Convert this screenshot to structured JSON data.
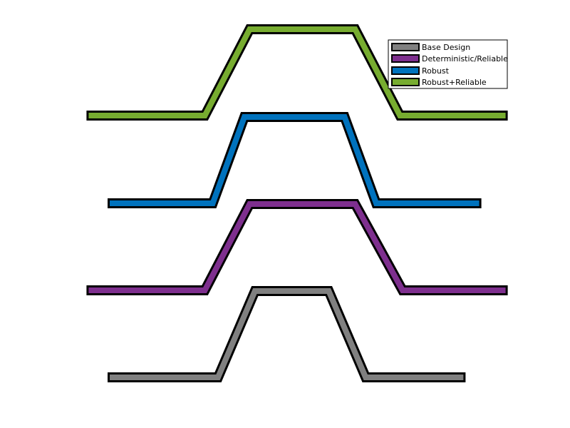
{
  "figure": {
    "type": "shape-profiles",
    "title": "",
    "legend_position": "top-right"
  },
  "designs": [
    {
      "key": "base",
      "label": "Base Design",
      "color": "#808080",
      "profile": {
        "left_x": 0.0,
        "bottom_left_x": 2.0,
        "top_left_x": 2.7,
        "top_right_x": 4.1,
        "bottom_right_x": 4.8,
        "right_x": 6.6
      }
    },
    {
      "key": "det",
      "label": "Deterministic/Reliable",
      "color": "#7E2F8E",
      "profile": {
        "left_x": -0.4,
        "bottom_left_x": 1.75,
        "top_left_x": 2.6,
        "top_right_x": 4.6,
        "bottom_right_x": 5.5,
        "right_x": 7.4
      }
    },
    {
      "key": "robust",
      "label": "Robust",
      "color": "#0072BD",
      "profile": {
        "left_x": 0.0,
        "bottom_left_x": 1.9,
        "top_left_x": 2.5,
        "top_right_x": 4.4,
        "bottom_right_x": 5.0,
        "right_x": 6.9
      }
    },
    {
      "key": "rr",
      "label": "Robust+Reliable",
      "color": "#77AC30",
      "profile": {
        "left_x": -0.4,
        "bottom_left_x": 1.75,
        "top_left_x": 2.6,
        "top_right_x": 4.6,
        "bottom_right_x": 5.45,
        "right_x": 7.4
      }
    }
  ],
  "legend": {
    "entries": [
      "Base Design",
      "Deterministic/Reliable",
      "Robust",
      "Robust+Reliable"
    ]
  }
}
